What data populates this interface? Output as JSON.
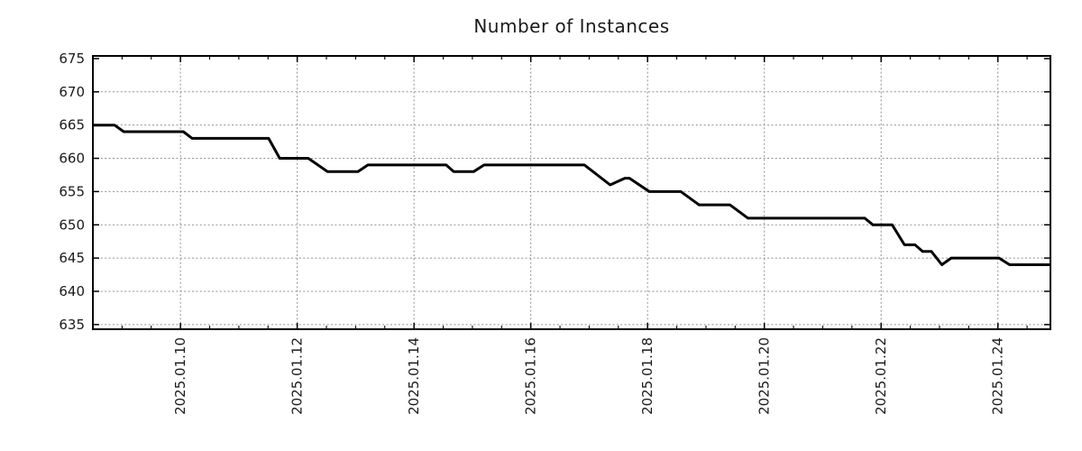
{
  "chart_data": {
    "type": "line",
    "title": "Number of Instances",
    "xlabel": "",
    "ylabel": "",
    "grid": true,
    "legend_position": "none",
    "x_unit": "day of January 2025 (fractional)",
    "xlim": [
      8.5,
      24.9
    ],
    "ylim": [
      634.3,
      675.4
    ],
    "x_ticks": [
      {
        "day": 10,
        "label": "2025.01.10"
      },
      {
        "day": 12,
        "label": "2025.01.12"
      },
      {
        "day": 14,
        "label": "2025.01.14"
      },
      {
        "day": 16,
        "label": "2025.01.16"
      },
      {
        "day": 18,
        "label": "2025.01.18"
      },
      {
        "day": 20,
        "label": "2025.01.20"
      },
      {
        "day": 22,
        "label": "2025.01.22"
      },
      {
        "day": 24,
        "label": "2025.01.24"
      }
    ],
    "x_minor_tick_interval_days": 0.5,
    "y_ticks": [
      635,
      640,
      645,
      650,
      655,
      660,
      665,
      670,
      675
    ],
    "series": [
      {
        "name": "Number of Instances",
        "color": "#000000",
        "line_width": 3,
        "points": [
          [
            8.5,
            665
          ],
          [
            8.87,
            665
          ],
          [
            9.03,
            664
          ],
          [
            10.05,
            664
          ],
          [
            10.2,
            663
          ],
          [
            11.51,
            663
          ],
          [
            11.7,
            660
          ],
          [
            12.19,
            660
          ],
          [
            12.52,
            658
          ],
          [
            13.04,
            658
          ],
          [
            13.21,
            659
          ],
          [
            14.55,
            659
          ],
          [
            14.68,
            658
          ],
          [
            15.02,
            658
          ],
          [
            15.2,
            659
          ],
          [
            16.92,
            659
          ],
          [
            17.36,
            656
          ],
          [
            17.61,
            657
          ],
          [
            17.69,
            657
          ],
          [
            18.03,
            655
          ],
          [
            18.57,
            655
          ],
          [
            18.88,
            653
          ],
          [
            19.41,
            653
          ],
          [
            19.72,
            651
          ],
          [
            21.72,
            651
          ],
          [
            21.86,
            650
          ],
          [
            22.19,
            650
          ],
          [
            22.4,
            647
          ],
          [
            22.58,
            647
          ],
          [
            22.71,
            646
          ],
          [
            22.86,
            646
          ],
          [
            23.04,
            644
          ],
          [
            23.2,
            645
          ],
          [
            24.02,
            645
          ],
          [
            24.2,
            644
          ],
          [
            24.9,
            644
          ]
        ]
      }
    ],
    "colors": {
      "line": "#000000",
      "grid": "#909090",
      "frame": "#000000",
      "tick_text": "#1a1a1a",
      "background": "#ffffff"
    }
  }
}
